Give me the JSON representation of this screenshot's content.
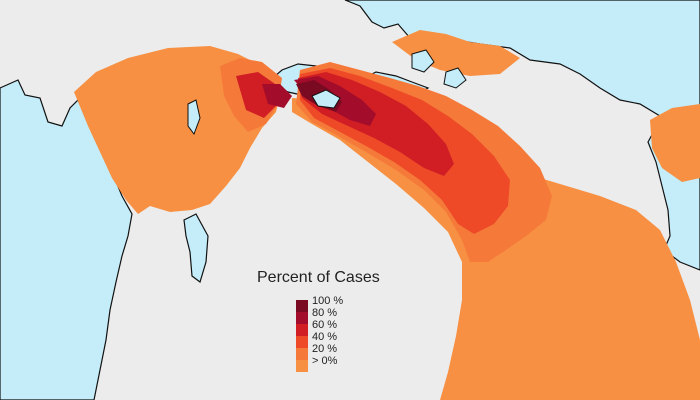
{
  "colors": {
    "background": "#ececec",
    "water": "#c4edf9",
    "coastline": "#111111"
  },
  "legend": {
    "title": "Percent of Cases",
    "classes": [
      {
        "label": "100 %",
        "color": "#7a0a22"
      },
      {
        "label": "80 %",
        "color": "#a30c2a"
      },
      {
        "label": "60 %",
        "color": "#d01e24"
      },
      {
        "label": "40 %",
        "color": "#ee4a28"
      },
      {
        "label": "20 %",
        "color": "#f57a3a"
      },
      {
        "label": "> 0%",
        "color": "#f79042"
      }
    ]
  }
}
